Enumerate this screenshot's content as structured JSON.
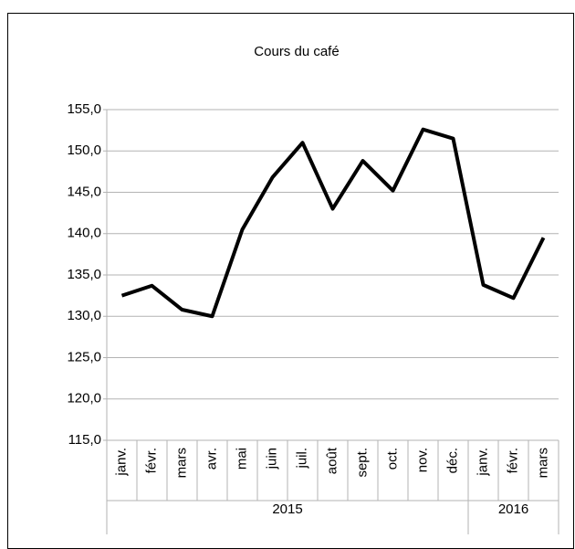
{
  "chart_data": {
    "type": "line",
    "title": "Cours du café",
    "categories": [
      "janv.",
      "févr.",
      "mars",
      "avr.",
      "mai",
      "juin",
      "juil.",
      "août",
      "sept.",
      "oct.",
      "nov.",
      "déc.",
      "janv.",
      "févr.",
      "mars"
    ],
    "x_groups": [
      {
        "label": "2015",
        "count": 12
      },
      {
        "label": "2016",
        "count": 3
      }
    ],
    "series": [
      {
        "name": "Cours du café",
        "color": "#000000",
        "values": [
          132.5,
          133.7,
          130.8,
          130.0,
          140.5,
          146.8,
          151.0,
          143.0,
          148.8,
          145.2,
          152.6,
          151.5,
          133.8,
          132.2,
          139.5
        ]
      }
    ],
    "ylim": [
      115,
      155
    ],
    "yticks": [
      {
        "value": 115,
        "label": "115,0"
      },
      {
        "value": 120,
        "label": "120,0"
      },
      {
        "value": 125,
        "label": "125,0"
      },
      {
        "value": 130,
        "label": "130,0"
      },
      {
        "value": 135,
        "label": "135,0"
      },
      {
        "value": 140,
        "label": "140,0"
      },
      {
        "value": 145,
        "label": "145,0"
      },
      {
        "value": 150,
        "label": "150,0"
      },
      {
        "value": 155,
        "label": "155,0"
      }
    ],
    "grid": true
  }
}
